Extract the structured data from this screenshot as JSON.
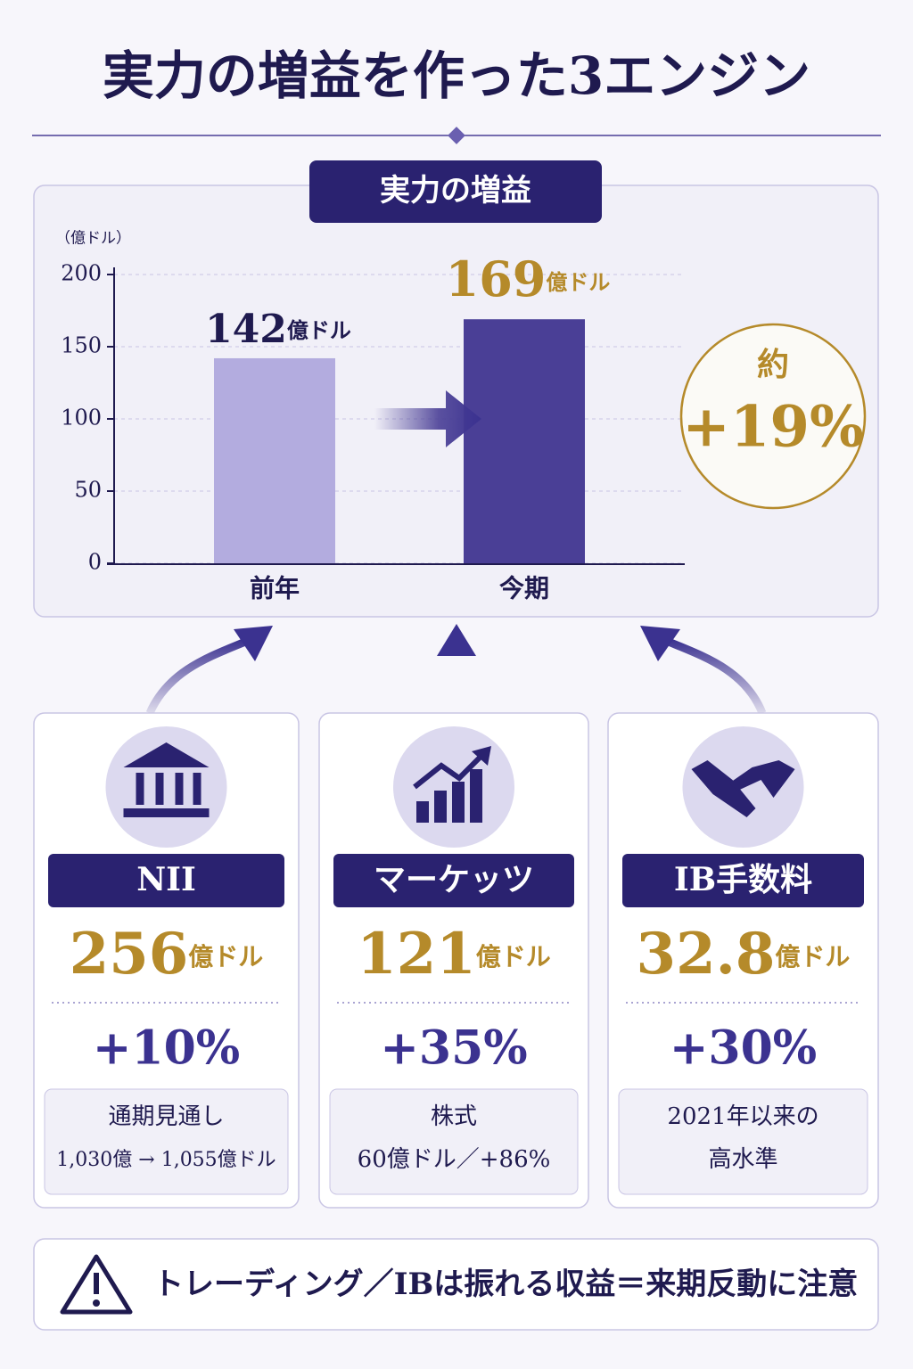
{
  "title": "実力の増益を作った3エンジン",
  "chart_data": {
    "type": "bar",
    "title": "実力の増益",
    "y_label": "（億ドル）",
    "categories": [
      "前年",
      "今期"
    ],
    "values": [
      142,
      169
    ],
    "unit": "億ドル",
    "colors": [
      "#b3acdf",
      "#4a3f96"
    ],
    "ylim": [
      0,
      200
    ],
    "yticks": [
      0,
      50,
      100,
      150,
      200
    ],
    "grid": true,
    "annotations": [
      "約",
      "+19%"
    ]
  },
  "engines": [
    {
      "name": "NII",
      "value": "256",
      "unit": "億ドル",
      "change": "+10%",
      "note": [
        "通期見通し",
        "1,030億 → 1,055億ドル"
      ]
    },
    {
      "name": "マーケッツ",
      "value": "121",
      "unit": "億ドル",
      "change": "+35%",
      "note": [
        "株式",
        "60億ドル／+86%"
      ]
    },
    {
      "name": "IB手数料",
      "value": "32.8",
      "unit": "億ドル",
      "change": "+30%",
      "note": [
        "2021年以来の",
        "高水準"
      ]
    }
  ],
  "warning": "トレーディング／IBは振れる収益＝来期反動に注意"
}
